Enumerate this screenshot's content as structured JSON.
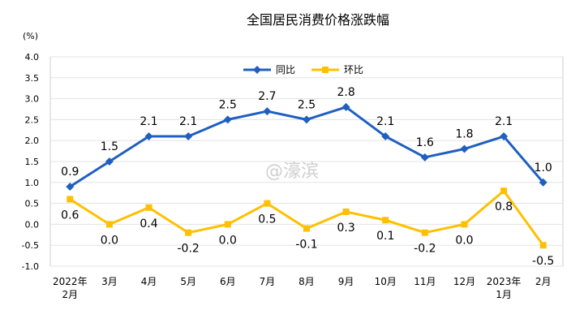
{
  "chart_data": {
    "type": "line",
    "title": "全国居民消费价格涨跌幅",
    "unit_label": "(%)",
    "ylim": [
      -1.0,
      4.0
    ],
    "yticks": [
      "4.0",
      "3.5",
      "3.0",
      "2.5",
      "2.0",
      "1.5",
      "1.0",
      "0.5",
      "0.0",
      "-0.5",
      "-1.0"
    ],
    "ytick_values": [
      4.0,
      3.5,
      3.0,
      2.5,
      2.0,
      1.5,
      1.0,
      0.5,
      0.0,
      -0.5,
      -1.0
    ],
    "categories": [
      [
        "2022年",
        "2月"
      ],
      [
        "3月"
      ],
      [
        "4月"
      ],
      [
        "5月"
      ],
      [
        "6月"
      ],
      [
        "7月"
      ],
      [
        "8月"
      ],
      [
        "9月"
      ],
      [
        "10月"
      ],
      [
        "11月"
      ],
      [
        "12月"
      ],
      [
        "2023年",
        "1月"
      ],
      [
        "2月"
      ]
    ],
    "legend_position": "top-center",
    "series": [
      {
        "name": "同比",
        "color": "#1f5fc0",
        "marker": "diamond",
        "values": [
          0.9,
          1.5,
          2.1,
          2.1,
          2.5,
          2.7,
          2.5,
          2.8,
          2.1,
          1.6,
          1.8,
          2.1,
          1.0
        ],
        "labels": [
          "0.9",
          "1.5",
          "2.1",
          "2.1",
          "2.5",
          "2.7",
          "2.5",
          "2.8",
          "2.1",
          "1.6",
          "1.8",
          "2.1",
          "1.0"
        ]
      },
      {
        "name": "环比",
        "color": "#ffc000",
        "marker": "square",
        "values": [
          0.6,
          0.0,
          0.4,
          -0.2,
          0.0,
          0.5,
          -0.1,
          0.3,
          0.1,
          -0.2,
          0.0,
          0.8,
          -0.5
        ],
        "labels": [
          "0.6",
          "0.0",
          "0.4",
          "-0.2",
          "0.0",
          "0.5",
          "-0.1",
          "0.3",
          "0.1",
          "-0.2",
          "0.0",
          "0.8",
          "-0.5"
        ]
      }
    ],
    "watermark": "@濠滨"
  }
}
